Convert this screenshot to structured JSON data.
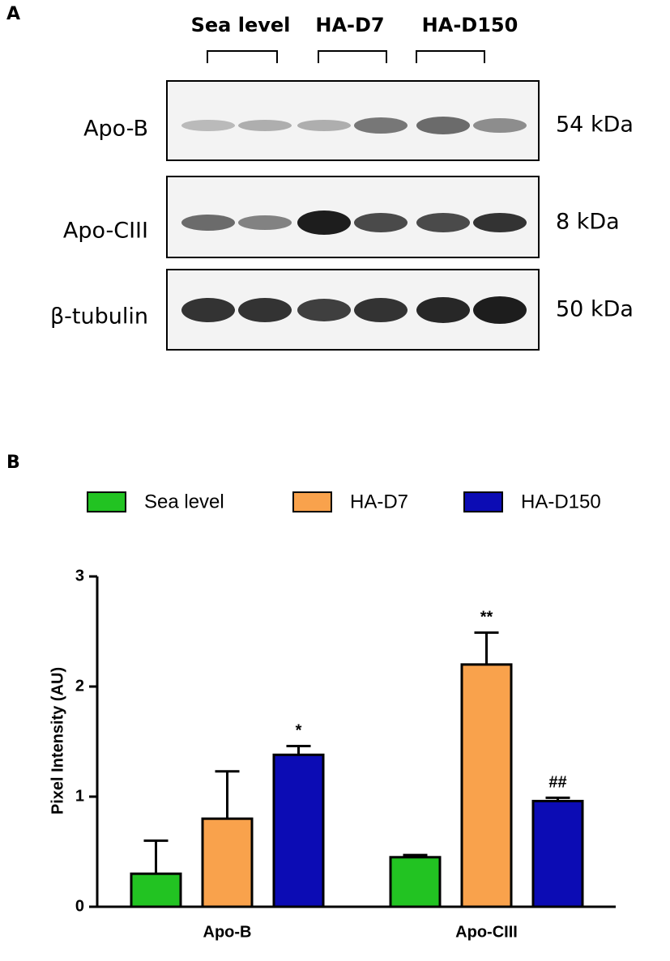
{
  "panel_a": {
    "label": "A",
    "groups": [
      "Sea level",
      "HA-D7",
      "HA-D150"
    ],
    "rows": [
      {
        "protein": "Apo-B",
        "size": "54 kDa"
      },
      {
        "protein": "Apo-CIII",
        "size": "8 kDa"
      },
      {
        "protein": "β-tubulin",
        "size": "50 kDa"
      }
    ]
  },
  "panel_b_label": "B",
  "chart_data": {
    "type": "bar",
    "ylabel": "Pixel Intensity (AU)",
    "categories": [
      "Apo-B",
      "Apo-CIII"
    ],
    "series": [
      {
        "name": "Sea level",
        "color": "#22c322",
        "values": [
          0.3,
          0.45
        ],
        "errors": [
          0.3,
          0.02
        ],
        "annotations": [
          null,
          null
        ]
      },
      {
        "name": "HA-D7",
        "color": "#f9a24c",
        "values": [
          0.8,
          2.2
        ],
        "errors": [
          0.43,
          0.29
        ],
        "annotations": [
          null,
          "**"
        ]
      },
      {
        "name": "HA-D150",
        "color": "#0c0cb4",
        "values": [
          1.38,
          0.96
        ],
        "errors": [
          0.08,
          0.03
        ],
        "annotations": [
          "*",
          "##"
        ]
      }
    ],
    "ylim": [
      0,
      3
    ],
    "yticks": [
      0,
      1,
      2,
      3
    ]
  }
}
